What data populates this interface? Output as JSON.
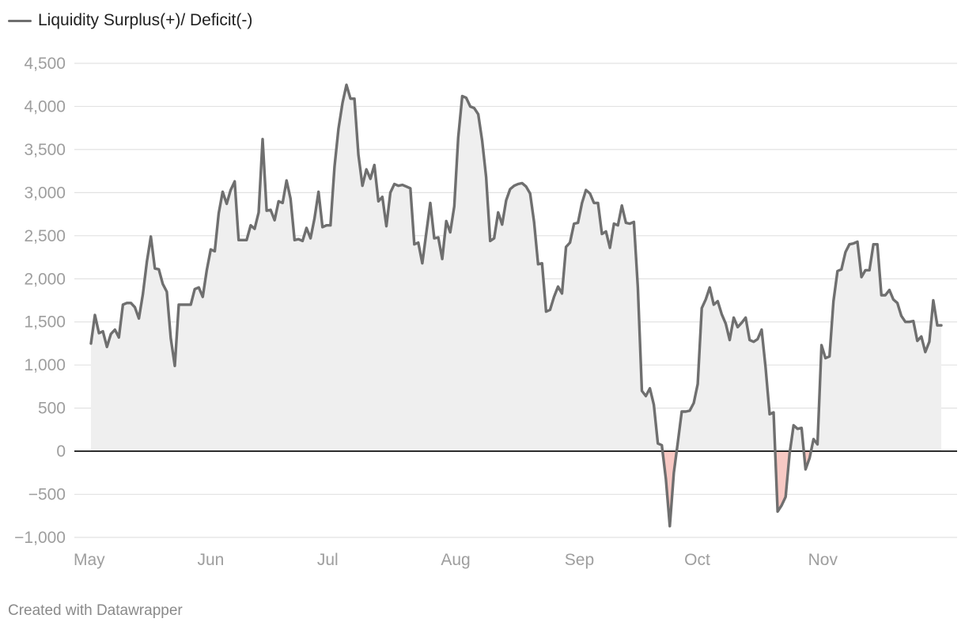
{
  "footer": {
    "credit": "Created with Datawrapper"
  },
  "colors": {
    "line": "#6f6f6f",
    "area_positive": "#efefef",
    "area_negative": "#f8c9c4",
    "zero_line": "#000000",
    "grid": "#e2e2e2"
  },
  "chart_data": {
    "type": "area",
    "title": "",
    "xlabel": "",
    "ylabel": "",
    "ylim": [
      -1000,
      4500
    ],
    "yticks": [
      4500,
      4000,
      3500,
      3000,
      2500,
      2000,
      1500,
      1000,
      500,
      0,
      -500,
      -1000
    ],
    "ytick_labels": [
      "4,500",
      "4,000",
      "3,500",
      "3,000",
      "2,500",
      "2,000",
      "1,500",
      "1,000",
      "500",
      "0",
      "−500",
      "−1,000"
    ],
    "xticks": [
      {
        "label": "May",
        "x": 0
      },
      {
        "label": "Jun",
        "x": 31
      },
      {
        "label": "Jul",
        "x": 61
      },
      {
        "label": "Aug",
        "x": 92
      },
      {
        "label": "Sep",
        "x": 123
      },
      {
        "label": "Oct",
        "x": 153
      },
      {
        "label": "Nov",
        "x": 184
      }
    ],
    "grid": true,
    "legend": "top-left",
    "series": [
      {
        "name": "Liquidity Surplus(+)/ Deficit(-)",
        "x": [
          0,
          1,
          2,
          3,
          4,
          5,
          6,
          7,
          8,
          9,
          10,
          11,
          12,
          13,
          14,
          15,
          16,
          17,
          18,
          19,
          20,
          21,
          22,
          23,
          24,
          25,
          26,
          27,
          28,
          29,
          30,
          31,
          32,
          33,
          34,
          35,
          36,
          37,
          38,
          39,
          40,
          41,
          42,
          43,
          44,
          45,
          46,
          47,
          48,
          49,
          50,
          51,
          52,
          53,
          54,
          55,
          56,
          57,
          58,
          59,
          60,
          61,
          62,
          63,
          64,
          65,
          66,
          67,
          68,
          69,
          70,
          71,
          72,
          73,
          74,
          75,
          76,
          77,
          78,
          79,
          80,
          81,
          82,
          83,
          84,
          85,
          86,
          87,
          88,
          89,
          90,
          91,
          92,
          93,
          94,
          95,
          96,
          97,
          98,
          99,
          100,
          101,
          102,
          103,
          104,
          105,
          106,
          107,
          108,
          109,
          110,
          111,
          112,
          113,
          114,
          115,
          116,
          117,
          118,
          119,
          120,
          121,
          122,
          123,
          124,
          125,
          126,
          127,
          128,
          129,
          130,
          131,
          132,
          133,
          134,
          135,
          136,
          137,
          138,
          139,
          140,
          141,
          142,
          143,
          144,
          145,
          146,
          147,
          148,
          149,
          150,
          151,
          152,
          153,
          154,
          155,
          156,
          157,
          158,
          159,
          160,
          161,
          162,
          163,
          164,
          165,
          166,
          167,
          168,
          169,
          170,
          171,
          172,
          173,
          174,
          175,
          176,
          177,
          178,
          179,
          180,
          181,
          182,
          183,
          184,
          185,
          186,
          187,
          188,
          189,
          190,
          191,
          192,
          193,
          194,
          195,
          196,
          197,
          198,
          199,
          200,
          201,
          202,
          203,
          204,
          205,
          206,
          207,
          208,
          209,
          210,
          211,
          212,
          213
        ],
        "values": [
          1250,
          1580,
          1370,
          1390,
          1210,
          1360,
          1410,
          1320,
          1700,
          1720,
          1720,
          1670,
          1540,
          1820,
          2200,
          2490,
          2120,
          2110,
          1940,
          1850,
          1310,
          990,
          1700,
          1700,
          1700,
          1700,
          1880,
          1900,
          1790,
          2100,
          2340,
          2320,
          2760,
          3010,
          2870,
          3030,
          3130,
          2450,
          2450,
          2450,
          2620,
          2580,
          2770,
          3620,
          2790,
          2800,
          2680,
          2900,
          2880,
          3140,
          2930,
          2450,
          2460,
          2440,
          2590,
          2470,
          2700,
          3010,
          2600,
          2620,
          2620,
          3300,
          3740,
          4040,
          4250,
          4090,
          4090,
          3440,
          3080,
          3270,
          3160,
          3320,
          2900,
          2950,
          2610,
          3000,
          3100,
          3080,
          3090,
          3070,
          3050,
          2400,
          2420,
          2180,
          2530,
          2880,
          2470,
          2480,
          2230,
          2670,
          2540,
          2840,
          3640,
          4120,
          4100,
          4000,
          3980,
          3910,
          3600,
          3180,
          2440,
          2470,
          2770,
          2630,
          2910,
          3040,
          3080,
          3100,
          3110,
          3070,
          2990,
          2660,
          2170,
          2180,
          1620,
          1640,
          1790,
          1910,
          1830,
          2370,
          2420,
          2640,
          2650,
          2880,
          3030,
          2990,
          2880,
          2880,
          2520,
          2550,
          2360,
          2640,
          2620,
          2850,
          2650,
          2640,
          2660,
          1900,
          700,
          640,
          730,
          540,
          90,
          70,
          -320,
          -870,
          -250,
          100,
          460,
          460,
          470,
          560,
          780,
          1660,
          1760,
          1900,
          1700,
          1740,
          1590,
          1480,
          1290,
          1550,
          1440,
          1490,
          1550,
          1290,
          1270,
          1300,
          1410,
          970,
          430,
          450,
          -700,
          -630,
          -530,
          -30,
          300,
          260,
          270,
          -210,
          -80,
          140,
          80,
          1230,
          1080,
          1100,
          1740,
          2090,
          2110,
          2310,
          2400,
          2410,
          2430,
          2020,
          2100,
          2100,
          2400,
          2400,
          1810,
          1810,
          1870,
          1760,
          1720,
          1570,
          1500,
          1500,
          1510,
          1280,
          1330,
          1150,
          1270,
          1750,
          1460,
          1460
        ]
      }
    ]
  }
}
